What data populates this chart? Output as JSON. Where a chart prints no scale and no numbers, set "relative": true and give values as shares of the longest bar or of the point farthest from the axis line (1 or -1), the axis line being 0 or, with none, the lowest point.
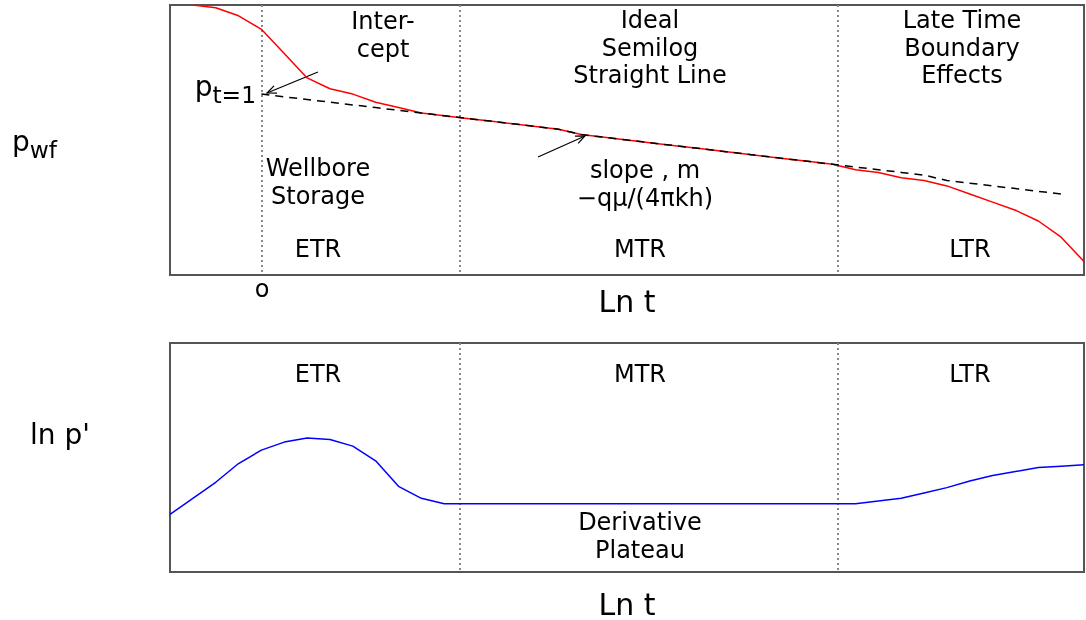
{
  "chart_data": [
    {
      "type": "line",
      "relative": true,
      "xlabel": "Ln t",
      "ylabel": "p$_{wf}$",
      "tick_labels": false,
      "marker": "none",
      "categories": [
        null,
        null,
        null,
        null,
        null,
        null,
        null,
        null,
        null,
        null,
        null,
        null,
        null,
        null,
        null,
        null,
        null,
        null,
        null,
        null,
        null,
        null,
        null,
        null,
        null,
        null,
        null,
        null,
        null,
        null,
        null,
        null,
        null,
        null,
        null,
        null,
        null,
        null,
        null,
        null,
        null
      ],
      "series": [
        {
          "color": "#ff0000",
          "line_style": "solid",
          "values": [
            null,
            1.0,
            0.99,
            0.96,
            0.91,
            0.82,
            0.73,
            0.69,
            0.67,
            0.64,
            0.62,
            0.6,
            0.59,
            0.58,
            0.57,
            0.56,
            0.55,
            0.54,
            0.52,
            0.51,
            0.5,
            0.49,
            0.48,
            0.47,
            0.46,
            0.45,
            0.44,
            0.43,
            0.42,
            0.41,
            0.39,
            0.38,
            0.36,
            0.35,
            0.33,
            0.3,
            0.27,
            0.24,
            0.2,
            0.14,
            0.05
          ]
        },
        {
          "color": "#000000",
          "line_style": "dashed",
          "values": [
            null,
            null,
            null,
            null,
            0.67,
            0.66,
            0.65,
            0.64,
            0.63,
            0.62,
            0.61,
            0.6,
            0.59,
            0.58,
            0.57,
            0.56,
            0.55,
            0.54,
            0.52,
            0.51,
            0.5,
            0.49,
            0.48,
            0.47,
            0.46,
            0.45,
            0.44,
            0.43,
            0.42,
            0.41,
            0.4,
            0.39,
            0.38,
            0.37,
            0.35,
            0.34,
            0.33,
            0.32,
            0.31,
            0.3,
            null
          ]
        }
      ],
      "annotations": [
        "p$_{t=1}$",
        "o",
        "Inter-\ncept",
        "Ideal\nSemilog\nStraight Line",
        "Late Time\nBoundary\nEffects",
        "Wellbore\nStorage",
        "slope , m\n−qμ/(4πkh)",
        "ETR",
        "MTR",
        "LTR"
      ]
    },
    {
      "type": "line",
      "relative": true,
      "xlabel": "Ln t",
      "ylabel": "ln p'",
      "tick_labels": false,
      "marker": "none",
      "categories": [
        null,
        null,
        null,
        null,
        null,
        null,
        null,
        null,
        null,
        null,
        null,
        null,
        null,
        null,
        null,
        null,
        null,
        null,
        null,
        null,
        null,
        null,
        null,
        null,
        null,
        null,
        null,
        null,
        null,
        null,
        null,
        null,
        null,
        null,
        null,
        null,
        null,
        null,
        null,
        null,
        null
      ],
      "series": [
        {
          "color": "#0000ff",
          "line_style": "solid",
          "values": [
            0.43,
            0.55,
            0.67,
            0.81,
            0.91,
            0.97,
            1.0,
            0.99,
            0.94,
            0.83,
            0.64,
            0.55,
            0.51,
            0.51,
            0.51,
            0.51,
            0.51,
            0.51,
            0.51,
            0.51,
            0.51,
            0.51,
            0.51,
            0.51,
            0.51,
            0.51,
            0.51,
            0.51,
            0.51,
            0.51,
            0.51,
            0.53,
            0.55,
            0.59,
            0.63,
            0.68,
            0.72,
            0.75,
            0.78,
            0.79,
            0.8
          ]
        }
      ],
      "annotations": [
        "ETR",
        "MTR",
        "LTR",
        "Derivative\nPlateau"
      ]
    }
  ]
}
